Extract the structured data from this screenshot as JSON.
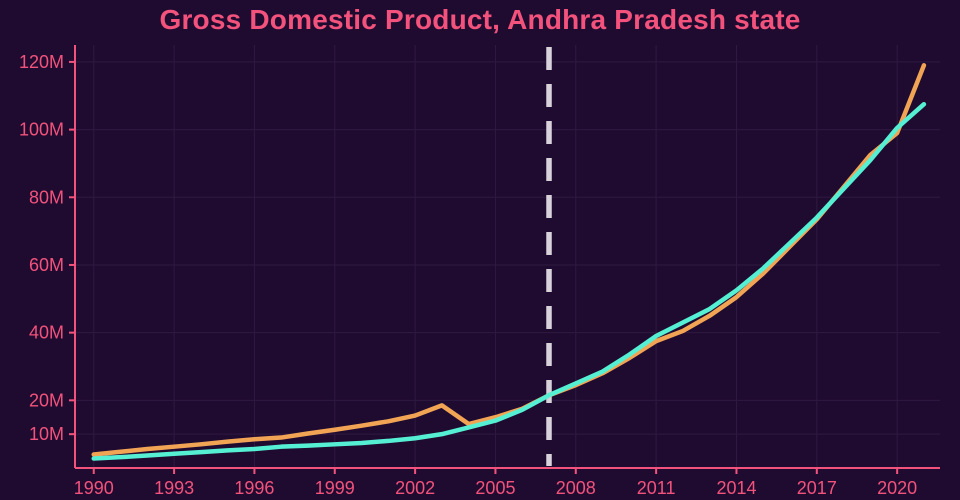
{
  "chart_data": {
    "type": "line",
    "title": "Gross Domestic Product, Andhra Pradesh state",
    "title_color": "#f2527c",
    "axis_color": "#f2527c",
    "grid_color": "#2e1a41",
    "background": "#200b30",
    "grid": true,
    "legend": "none",
    "xlim": [
      1989.3,
      2021.6
    ],
    "ylim": [
      0,
      125
    ],
    "x_ticks": [
      1990,
      1993,
      1996,
      1999,
      2002,
      2005,
      2008,
      2011,
      2014,
      2017,
      2020
    ],
    "y_ticks": [
      {
        "value": 10,
        "label": "10M"
      },
      {
        "value": 20,
        "label": "20M"
      },
      {
        "value": 40,
        "label": "40M"
      },
      {
        "value": 60,
        "label": "60M"
      },
      {
        "value": 80,
        "label": "80M"
      },
      {
        "value": 100,
        "label": "100M"
      },
      {
        "value": 120,
        "label": "120M"
      }
    ],
    "divider": {
      "x": 2007,
      "color": "#d8d2da",
      "style": "dashed"
    },
    "x": [
      1990,
      1991,
      1992,
      1993,
      1994,
      1995,
      1996,
      1997,
      1998,
      1999,
      2000,
      2001,
      2002,
      2003,
      2004,
      2005,
      2006,
      2007,
      2008,
      2009,
      2010,
      2011,
      2012,
      2013,
      2014,
      2015,
      2016,
      2017,
      2018,
      2019,
      2020,
      2021
    ],
    "series": [
      {
        "name": "series-orange",
        "color": "#f2a455",
        "values": [
          4.0,
          4.8,
          5.6,
          6.3,
          7.0,
          7.8,
          8.5,
          9.0,
          10.2,
          11.3,
          12.5,
          13.8,
          15.5,
          18.5,
          13.0,
          15.0,
          17.5,
          21.5,
          24.5,
          28.0,
          32.5,
          37.5,
          40.5,
          45.0,
          50.5,
          57.5,
          65.5,
          73.5,
          83.0,
          92.5,
          99.0,
          119.0
        ]
      },
      {
        "name": "series-teal",
        "color": "#55f0d3",
        "values": [
          2.8,
          3.2,
          3.7,
          4.2,
          4.7,
          5.2,
          5.6,
          6.3,
          6.6,
          7.0,
          7.4,
          8.0,
          8.8,
          10.0,
          12.0,
          14.0,
          17.2,
          21.5,
          25.0,
          28.5,
          33.5,
          39.0,
          43.0,
          47.0,
          52.5,
          59.0,
          66.5,
          74.0,
          82.5,
          91.0,
          100.5,
          107.5
        ]
      }
    ]
  }
}
